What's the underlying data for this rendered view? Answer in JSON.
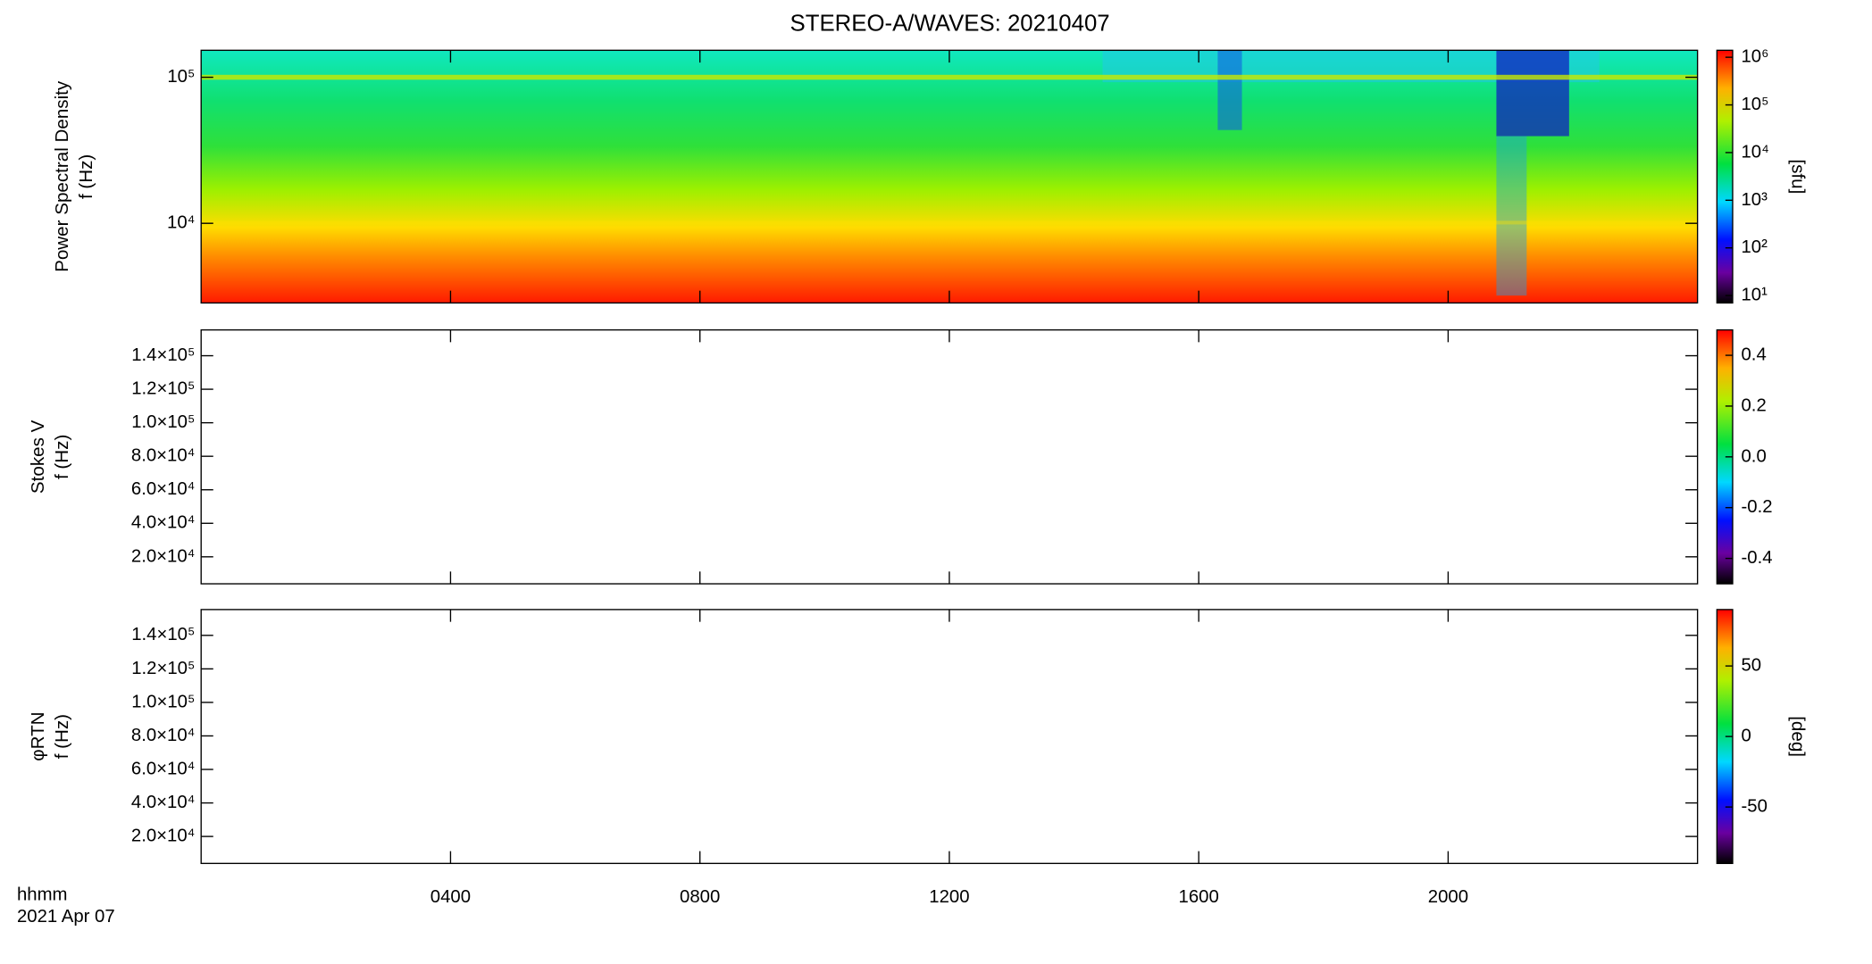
{
  "title": "STEREO-A/WAVES: 20210407",
  "chart_data": [
    {
      "type": "heatmap",
      "ylabel": [
        "Power Spectral Density",
        "f (Hz)"
      ],
      "ylog": true,
      "ylim": [
        2850,
        153000
      ],
      "yticks": [
        {
          "value": 10000,
          "label": "10⁴"
        },
        {
          "value": 100000,
          "label": "10⁵"
        }
      ],
      "xlim": [
        0,
        24
      ],
      "colorbar": {
        "log": true,
        "lim": [
          7,
          1400000
        ],
        "label": "[sfu]",
        "ticks": [
          {
            "value": 10,
            "label": "10¹"
          },
          {
            "value": 100,
            "label": "10²"
          },
          {
            "value": 1000,
            "label": "10³"
          },
          {
            "value": 10000,
            "label": "10⁴"
          },
          {
            "value": 100000,
            "label": "10⁵"
          },
          {
            "value": 1000000,
            "label": "10⁶"
          }
        ]
      }
    },
    {
      "type": "heatmap",
      "ylabel": [
        "Stokes V",
        "f (Hz)"
      ],
      "ylog": false,
      "ylim": [
        3900,
        155400
      ],
      "yticks": [
        {
          "value": 20000,
          "label": "2.0×10⁴"
        },
        {
          "value": 40000,
          "label": "4.0×10⁴"
        },
        {
          "value": 60000,
          "label": "6.0×10⁴"
        },
        {
          "value": 80000,
          "label": "8.0×10⁴"
        },
        {
          "value": 100000,
          "label": "1.0×10⁵"
        },
        {
          "value": 120000,
          "label": "1.2×10⁵"
        },
        {
          "value": 140000,
          "label": "1.4×10⁵"
        }
      ],
      "xlim": [
        0,
        24
      ],
      "colorbar": {
        "log": false,
        "lim": [
          -0.5,
          0.5
        ],
        "ticks": [
          -0.4,
          -0.2,
          {
            "value": 0,
            "label": "0.0"
          },
          0.2,
          0.4
        ]
      }
    },
    {
      "type": "heatmap",
      "ylabel": [
        "φRTN",
        "f (Hz)"
      ],
      "ylog": false,
      "ylim": [
        3900,
        155400
      ],
      "yticks": [
        {
          "value": 20000,
          "label": "2.0×10⁴"
        },
        {
          "value": 40000,
          "label": "4.0×10⁴"
        },
        {
          "value": 60000,
          "label": "6.0×10⁴"
        },
        {
          "value": 80000,
          "label": "8.0×10⁴"
        },
        {
          "value": 100000,
          "label": "1.0×10⁵"
        },
        {
          "value": 120000,
          "label": "1.2×10⁵"
        },
        {
          "value": 140000,
          "label": "1.4×10⁵"
        }
      ],
      "xlim": [
        0,
        24
      ],
      "xticks": [
        {
          "value": 4,
          "label": "0400"
        },
        {
          "value": 8,
          "label": "0800"
        },
        {
          "value": 12,
          "label": "1200"
        },
        {
          "value": 16,
          "label": "1600"
        },
        {
          "value": 20,
          "label": "2000"
        }
      ],
      "xlabel": [
        "hhmm",
        "2021 Apr 07"
      ],
      "colorbar": {
        "log": false,
        "lim": [
          -90,
          90
        ],
        "label": "[deg]",
        "ticks": [
          -50,
          0,
          50
        ]
      }
    }
  ]
}
